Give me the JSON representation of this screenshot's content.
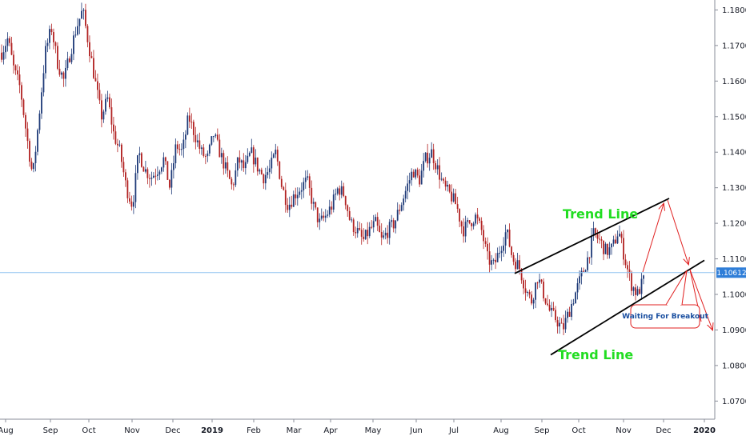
{
  "chart_data": {
    "type": "candlestick",
    "y_ticks": [
      "1.18000",
      "1.17000",
      "1.16000",
      "1.15000",
      "1.14000",
      "1.13000",
      "1.12000",
      "1.11000",
      "1.10000",
      "1.09000",
      "1.08000",
      "1.07000"
    ],
    "x_ticks": [
      {
        "label": "Aug",
        "bold": false
      },
      {
        "label": "Sep",
        "bold": false
      },
      {
        "label": "Oct",
        "bold": false
      },
      {
        "label": "Nov",
        "bold": false
      },
      {
        "label": "Dec",
        "bold": false
      },
      {
        "label": "2019",
        "bold": true
      },
      {
        "label": "Feb",
        "bold": false
      },
      {
        "label": "Mar",
        "bold": false
      },
      {
        "label": "Apr",
        "bold": false
      },
      {
        "label": "May",
        "bold": false
      },
      {
        "label": "Jun",
        "bold": false
      },
      {
        "label": "Jul",
        "bold": false
      },
      {
        "label": "Aug",
        "bold": false
      },
      {
        "label": "Sep",
        "bold": false
      },
      {
        "label": "Oct",
        "bold": false
      },
      {
        "label": "Nov",
        "bold": false
      },
      {
        "label": "Dec",
        "bold": false
      },
      {
        "label": "2020",
        "bold": true
      }
    ],
    "ylim": [
      1.0649,
      1.1828
    ],
    "current_price": "1.10612",
    "current_price_value": 1.10612,
    "price_path": [
      1.168,
      1.172,
      1.163,
      1.158,
      1.145,
      1.133,
      1.15,
      1.168,
      1.175,
      1.165,
      1.16,
      1.168,
      1.175,
      1.18,
      1.17,
      1.16,
      1.15,
      1.155,
      1.145,
      1.14,
      1.13,
      1.125,
      1.14,
      1.135,
      1.133,
      1.135,
      1.138,
      1.13,
      1.142,
      1.14,
      1.15,
      1.145,
      1.14,
      1.138,
      1.145,
      1.14,
      1.135,
      1.13,
      1.138,
      1.135,
      1.14,
      1.136,
      1.133,
      1.135,
      1.14,
      1.13,
      1.125,
      1.128,
      1.13,
      1.132,
      1.125,
      1.12,
      1.122,
      1.125,
      1.13,
      1.128,
      1.12,
      1.118,
      1.115,
      1.118,
      1.12,
      1.115,
      1.118,
      1.12,
      1.125,
      1.13,
      1.135,
      1.132,
      1.138,
      1.14,
      1.135,
      1.13,
      1.128,
      1.125,
      1.118,
      1.12,
      1.122,
      1.118,
      1.11,
      1.108,
      1.113,
      1.118,
      1.11,
      1.108,
      1.102,
      1.098,
      1.105,
      1.1,
      1.095,
      1.093,
      1.09,
      1.095,
      1.1,
      1.105,
      1.11,
      1.117,
      1.115,
      1.112,
      1.113,
      1.118,
      1.11,
      1.103,
      1.1,
      1.104
    ],
    "channel": {
      "upper": {
        "from": [
          1.1059,
          "mid-Aug 2019"
        ],
        "to": [
          1.127,
          "early Dec 2019"
        ]
      },
      "lower": {
        "from": [
          1.083,
          "early Sep 2019"
        ],
        "to": [
          1.1096,
          "late Dec 2019"
        ]
      }
    }
  },
  "annotations": {
    "trend_line_upper": "Trend Line",
    "trend_line_lower": "Trend Line",
    "callout": "Waiting For Breakout"
  },
  "colors": {
    "bull_candle": "#1e3a78",
    "bear_candle": "#b22222",
    "trend_text": "#22dd22",
    "arrow": "#e02020",
    "current_price_line": "#90c4f0",
    "current_price_badge": "#2f7ed8"
  }
}
